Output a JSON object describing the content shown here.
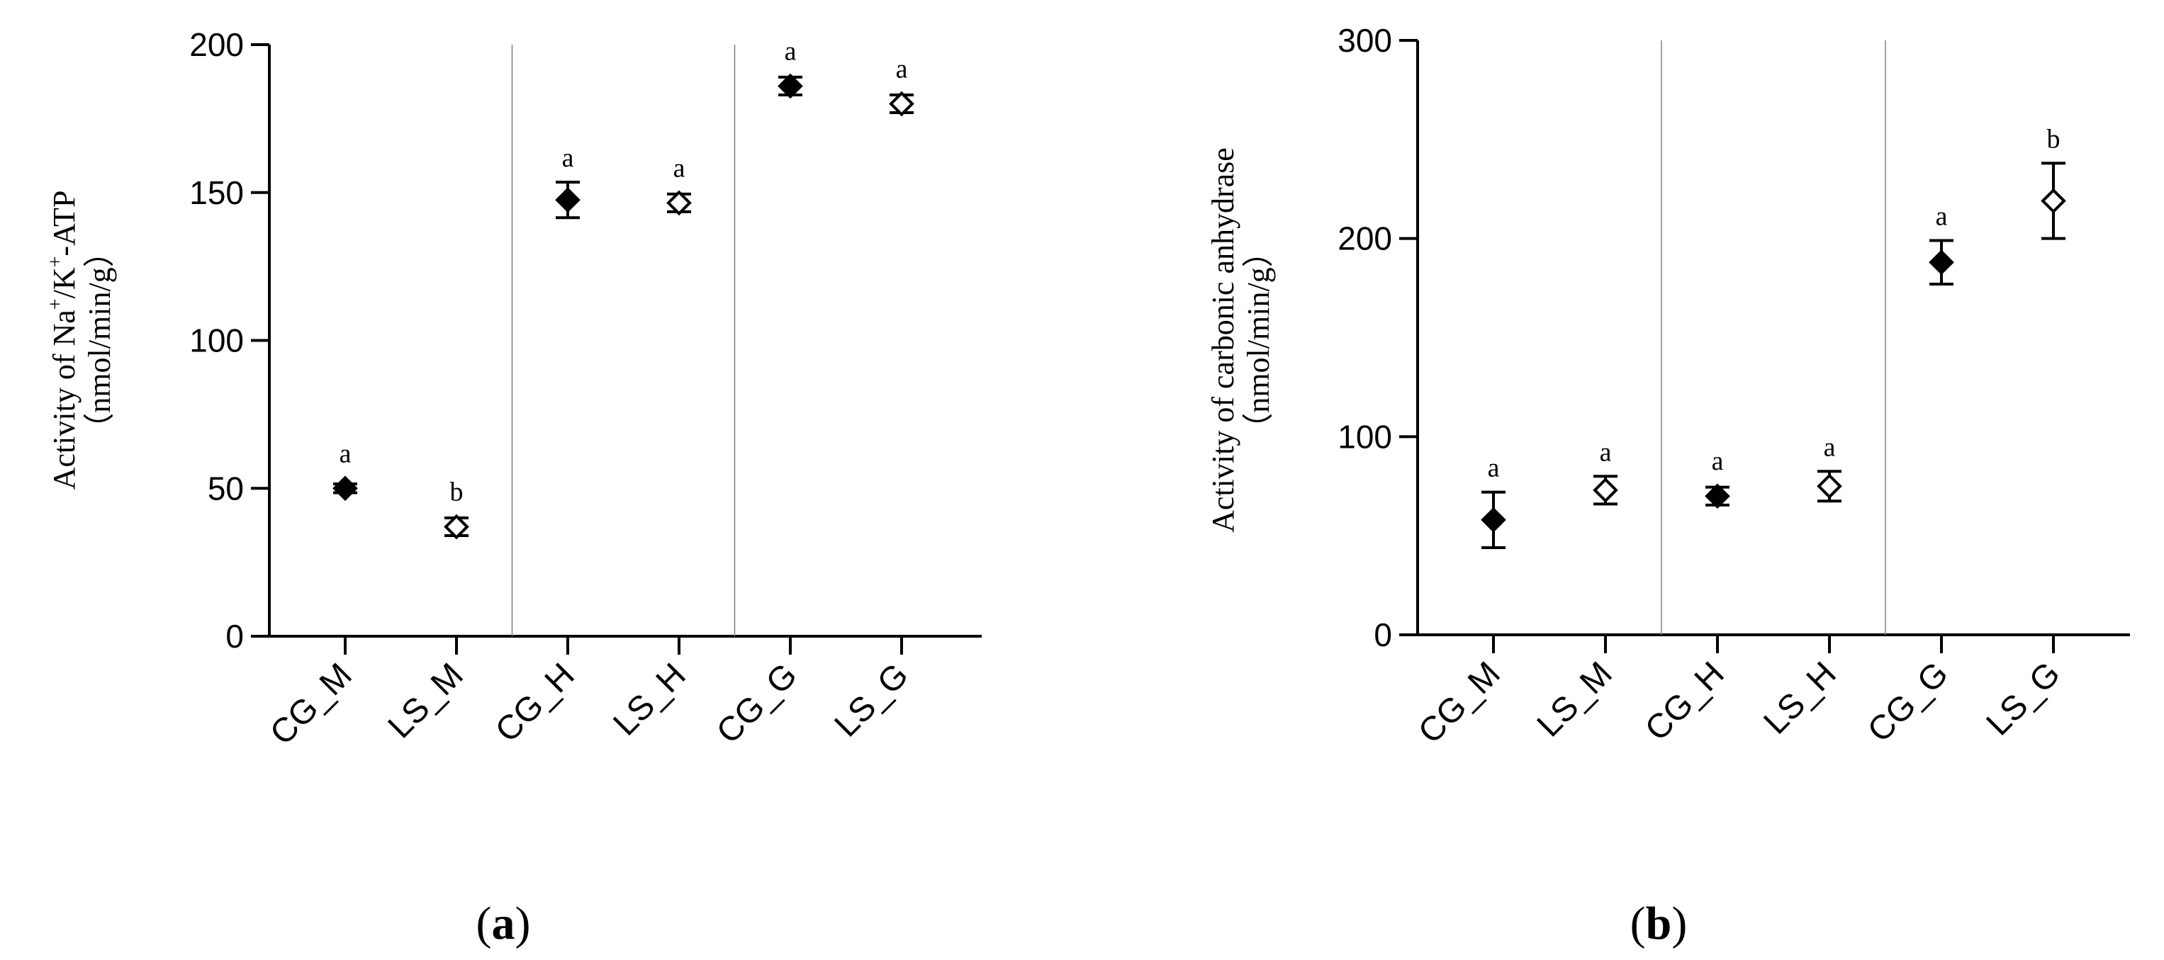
{
  "chart_data": [
    {
      "type": "scatter",
      "panel_label_open": "(",
      "panel_label_letter": "a",
      "panel_label_close": ")",
      "ylabel_line1_parts": [
        "Activity of Na",
        "+",
        "/K",
        "+",
        "-ATP"
      ],
      "ylabel_line2": "（nmol/min/g）",
      "ylim": [
        0,
        200
      ],
      "yticks": [
        0,
        50,
        100,
        150,
        200
      ],
      "categories": [
        "CG_M",
        "LS_M",
        "CG_H",
        "LS_H",
        "CG_G",
        "LS_G"
      ],
      "group_separators_after": [
        2,
        4
      ],
      "points": [
        {
          "category": "CG_M",
          "mean": 50,
          "err": 1.5,
          "sig": "a",
          "marker": "filled-diamond"
        },
        {
          "category": "LS_M",
          "mean": 37,
          "err": 3,
          "sig": "b",
          "marker": "open-diamond"
        },
        {
          "category": "CG_H",
          "mean": 147.5,
          "err": 6,
          "sig": "a",
          "marker": "filled-diamond"
        },
        {
          "category": "LS_H",
          "mean": 146.5,
          "err": 3,
          "sig": "a",
          "marker": "open-diamond"
        },
        {
          "category": "CG_G",
          "mean": 186,
          "err": 3,
          "sig": "a",
          "marker": "filled-diamond"
        },
        {
          "category": "LS_G",
          "mean": 180,
          "err": 3,
          "sig": "a",
          "marker": "open-diamond"
        }
      ]
    },
    {
      "type": "scatter",
      "panel_label_open": "(",
      "panel_label_letter": "b",
      "panel_label_close": ")",
      "ylabel_line1": "Activity of carbonic anhydrase",
      "ylabel_line2": "（nmol/min/g）",
      "ylim": [
        0,
        300
      ],
      "yticks": [
        0,
        100,
        200,
        300
      ],
      "categories": [
        "CG_M",
        "LS_M",
        "CG_H",
        "LS_H",
        "CG_G",
        "LS_G"
      ],
      "group_separators_after": [
        2,
        4
      ],
      "points": [
        {
          "category": "CG_M",
          "mean": 58,
          "err": 14,
          "sig": "a",
          "marker": "filled-diamond"
        },
        {
          "category": "LS_M",
          "mean": 73,
          "err": 7,
          "sig": "a",
          "marker": "open-diamond"
        },
        {
          "category": "CG_H",
          "mean": 70,
          "err": 4.5,
          "sig": "a",
          "marker": "filled-diamond"
        },
        {
          "category": "LS_H",
          "mean": 75,
          "err": 7.5,
          "sig": "a",
          "marker": "open-diamond"
        },
        {
          "category": "CG_G",
          "mean": 188,
          "err": 11,
          "sig": "a",
          "marker": "filled-diamond"
        },
        {
          "category": "LS_G",
          "mean": 219,
          "err": 19,
          "sig": "b",
          "marker": "open-diamond"
        }
      ]
    }
  ]
}
